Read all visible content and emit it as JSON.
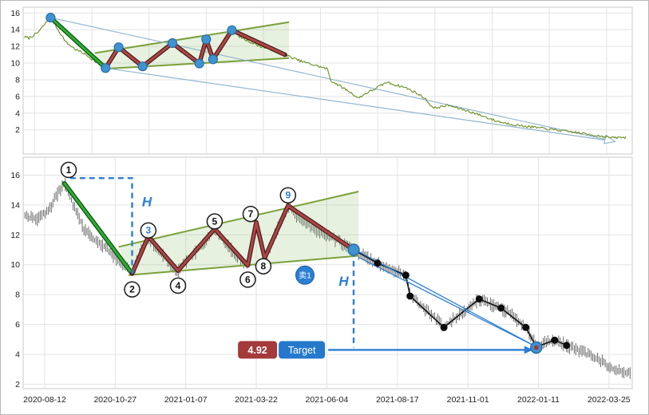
{
  "colors": {
    "price_line": "#6b8e23",
    "bars": "#3d3d3d",
    "impulse": "#2fae2f",
    "impulse_outline": "#0e5a18",
    "zigzag": "#b04545",
    "zigzag_outline": "#4a1d1d",
    "trendline": "#7aa03a",
    "wedge_fill": "rgba(140,190,110,0.22)",
    "blue": "#2b7fd4",
    "dot_blue": "#3f93d2",
    "dot_blue_edge": "#2a6da6",
    "projection": "#92b6cf",
    "black_line": "#111111",
    "target_red": "#a43a3a",
    "target_blue": "#2479cc",
    "grid": "#e3e3e3",
    "panel_border": "#c9c9c9",
    "axis_text": "#222222"
  },
  "axes": {
    "y_ticks": [
      "16",
      "14",
      "12",
      "10",
      "8",
      "6",
      "4",
      "2"
    ],
    "x_ticks": [
      "2020-08-12",
      "2020-10-27",
      "2021-01-07",
      "2021-03-22",
      "2021-06-04",
      "2021-08-17",
      "2021-11-01",
      "2022-01-11",
      "2022-03-25"
    ]
  },
  "chart_data": {
    "type": "line",
    "title": "",
    "panels": [
      {
        "id": "overview",
        "xlim": [
          -0.2,
          10.45
        ],
        "ylim": [
          -0.9,
          16.7
        ]
      },
      {
        "id": "detail",
        "xlim": [
          -0.305,
          8.33
        ],
        "ylim": [
          1.7,
          17.2
        ]
      }
    ],
    "price_path": [
      [
        -0.28,
        13.3
      ],
      [
        -0.1,
        13.0
      ],
      [
        0.05,
        13.6
      ],
      [
        0.28,
        15.5
      ],
      [
        0.4,
        14.1
      ],
      [
        0.55,
        12.5
      ],
      [
        0.7,
        11.7
      ],
      [
        0.85,
        11.2
      ],
      [
        1.0,
        10.5
      ],
      [
        1.12,
        9.9
      ],
      [
        1.24,
        9.4
      ],
      [
        1.36,
        10.9
      ],
      [
        1.47,
        11.9
      ],
      [
        1.62,
        10.9
      ],
      [
        1.76,
        10.1
      ],
      [
        1.89,
        9.6
      ],
      [
        2.02,
        10.3
      ],
      [
        2.18,
        11.0
      ],
      [
        2.3,
        11.6
      ],
      [
        2.41,
        12.4
      ],
      [
        2.55,
        11.5
      ],
      [
        2.7,
        10.7
      ],
      [
        2.88,
        9.95
      ],
      [
        3.0,
        12.85
      ],
      [
        3.06,
        11.5
      ],
      [
        3.12,
        10.45
      ],
      [
        3.28,
        12.2
      ],
      [
        3.45,
        13.95
      ],
      [
        3.6,
        13.1
      ],
      [
        3.78,
        12.5
      ],
      [
        3.95,
        12.0
      ],
      [
        4.15,
        11.6
      ],
      [
        4.38,
        11.0
      ],
      [
        4.55,
        10.5
      ],
      [
        4.72,
        10.1
      ],
      [
        4.92,
        9.7
      ],
      [
        5.12,
        9.3
      ],
      [
        5.18,
        7.9
      ],
      [
        5.35,
        7.2
      ],
      [
        5.5,
        6.6
      ],
      [
        5.66,
        5.8
      ],
      [
        5.8,
        6.4
      ],
      [
        5.92,
        6.8
      ],
      [
        6.05,
        7.3
      ],
      [
        6.16,
        7.7
      ],
      [
        6.3,
        7.4
      ],
      [
        6.47,
        7.1
      ],
      [
        6.65,
        6.5
      ],
      [
        6.82,
        5.8
      ],
      [
        6.97,
        4.6
      ],
      [
        7.1,
        4.75
      ],
      [
        7.23,
        4.95
      ],
      [
        7.4,
        4.6
      ],
      [
        7.58,
        4.25
      ],
      [
        7.75,
        3.85
      ],
      [
        7.9,
        3.5
      ],
      [
        8.05,
        3.1
      ],
      [
        8.2,
        2.85
      ],
      [
        8.31,
        2.7
      ]
    ],
    "price_path_ext": [
      [
        8.5,
        2.5
      ],
      [
        8.8,
        2.25
      ],
      [
        9.1,
        2.0
      ],
      [
        9.45,
        1.7
      ],
      [
        9.8,
        1.35
      ],
      [
        10.1,
        1.05
      ],
      [
        10.35,
        1.1
      ]
    ],
    "pattern": {
      "impulse_down": [
        [
          0.28,
          15.45
        ],
        [
          1.24,
          9.4
        ]
      ],
      "zigzag": [
        [
          1.24,
          9.4
        ],
        [
          1.47,
          11.9
        ],
        [
          1.89,
          9.6
        ],
        [
          2.41,
          12.4
        ],
        [
          2.88,
          9.95
        ],
        [
          3.0,
          12.85
        ],
        [
          3.12,
          10.45
        ],
        [
          3.45,
          13.95
        ],
        [
          4.38,
          11.0
        ]
      ],
      "upper_trendline": [
        [
          1.05,
          11.2
        ],
        [
          4.45,
          14.9
        ]
      ],
      "lower_trendline": [
        [
          1.19,
          9.3
        ],
        [
          4.45,
          10.6
        ]
      ],
      "vertex_dots": [
        [
          0.28,
          15.45
        ],
        [
          1.24,
          9.4
        ],
        [
          1.47,
          11.9
        ],
        [
          1.89,
          9.6
        ],
        [
          2.41,
          12.4
        ],
        [
          2.88,
          9.95
        ],
        [
          3.0,
          12.85
        ],
        [
          3.12,
          10.45
        ],
        [
          3.45,
          13.95
        ]
      ]
    },
    "projection": {
      "lines": [
        [
          [
            0.28,
            15.45
          ],
          [
            10.15,
            0.6
          ]
        ],
        [
          [
            1.24,
            9.4
          ],
          [
            10.15,
            0.6
          ]
        ]
      ],
      "tip": [
        10.15,
        0.6
      ]
    },
    "post_breakdown": {
      "zigzag": [
        [
          4.38,
          11.0
        ],
        [
          4.72,
          10.1
        ],
        [
          5.12,
          9.3
        ],
        [
          5.18,
          7.9
        ],
        [
          5.66,
          5.8
        ],
        [
          5.92,
          6.8
        ],
        [
          6.16,
          7.7
        ],
        [
          6.47,
          7.1
        ],
        [
          6.82,
          5.8
        ],
        [
          6.97,
          4.5
        ],
        [
          7.23,
          4.95
        ],
        [
          7.4,
          4.6
        ]
      ],
      "dots": [
        [
          4.72,
          10.1
        ],
        [
          5.12,
          9.3
        ],
        [
          5.18,
          7.9
        ],
        [
          5.66,
          5.8
        ],
        [
          6.16,
          7.7
        ],
        [
          6.47,
          7.1
        ],
        [
          6.82,
          5.8
        ],
        [
          7.23,
          4.95
        ],
        [
          7.4,
          4.6
        ]
      ],
      "channel": [
        [
          [
            4.38,
            11.05
          ],
          [
            6.97,
            4.5
          ]
        ],
        [
          [
            4.45,
            10.5
          ],
          [
            6.97,
            4.5
          ]
        ]
      ]
    },
    "annotations": {
      "wave_labels": [
        {
          "text": "1",
          "t": 0.34,
          "v": 16.35,
          "color": "black",
          "circled": true
        },
        {
          "text": "2",
          "t": 1.24,
          "v": 8.35,
          "color": "black",
          "circled": true
        },
        {
          "text": "3",
          "t": 1.47,
          "v": 12.3,
          "color": "blue",
          "circled": true
        },
        {
          "text": "4",
          "t": 1.89,
          "v": 8.6,
          "color": "black",
          "circled": true
        },
        {
          "text": "5",
          "t": 2.41,
          "v": 12.9,
          "color": "black",
          "circled": true
        },
        {
          "text": "6",
          "t": 2.88,
          "v": 9.0,
          "color": "black",
          "circled": true
        },
        {
          "text": "7",
          "t": 2.92,
          "v": 13.4,
          "color": "black",
          "circled": true
        },
        {
          "text": "8",
          "t": 3.1,
          "v": 9.9,
          "color": "black",
          "circled": true
        },
        {
          "text": "9",
          "t": 3.45,
          "v": 14.65,
          "color": "blue",
          "circled": true
        }
      ],
      "h_measure": {
        "text": "H",
        "first": {
          "t": 1.24,
          "v_top": 15.8,
          "v_bottom": 9.4,
          "h_from_t": 0.36,
          "label_t": 1.38,
          "label_v": 13.9
        },
        "second": {
          "t": 4.38,
          "v_top": 10.9,
          "v_bottom": 4.45,
          "label_t": 4.17,
          "label_v": 8.6
        }
      },
      "sell_badge": {
        "text": "卖1",
        "t": 3.69,
        "v": 9.3
      },
      "sell_point": {
        "t": 4.38,
        "v": 11.0
      },
      "target": {
        "price_text": "4.92",
        "label_text": "Target",
        "t": 6.97,
        "v": 4.45,
        "badge_t": 2.74,
        "badge_v": 4.3
      }
    }
  }
}
